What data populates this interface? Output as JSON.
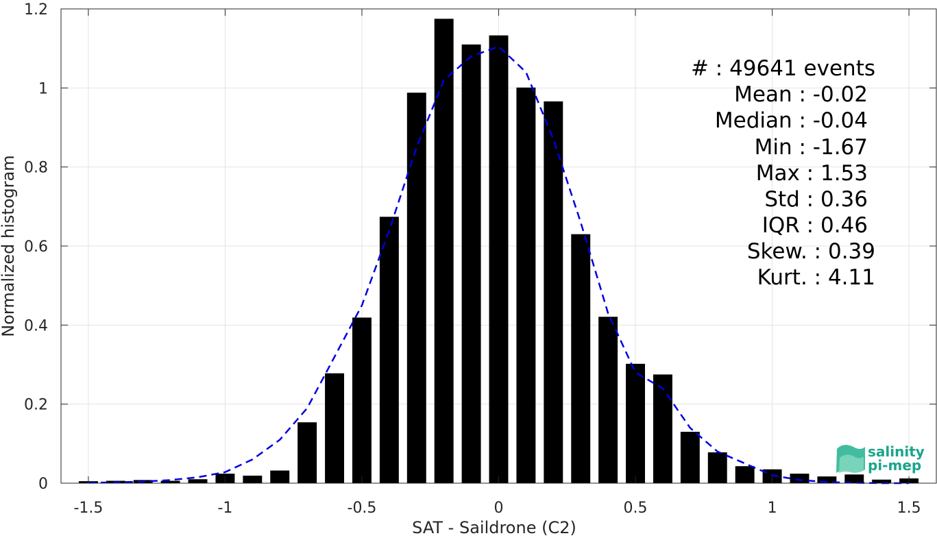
{
  "chart_data": {
    "type": "bar",
    "xlabel": "SAT - Saildrone (C2)",
    "ylabel": "Normalized histogram",
    "xlim": [
      -1.6,
      1.6
    ],
    "ylim": [
      0,
      1.2
    ],
    "grid": true,
    "x_ticks": [
      -1.5,
      -1,
      -0.5,
      0,
      0.5,
      1,
      1.5
    ],
    "x_tick_labels": [
      "-1.5",
      "-1",
      "-0.5",
      "0",
      "0.5",
      "1",
      "1.5"
    ],
    "y_ticks": [
      0,
      0.2,
      0.4,
      0.6,
      0.8,
      1,
      1.2
    ],
    "y_tick_labels": [
      "0",
      "0.2",
      "0.4",
      "0.6",
      "0.8",
      "1",
      "1.2"
    ],
    "bar_width": 0.07,
    "bars": {
      "x": [
        -1.5,
        -1.4,
        -1.3,
        -1.2,
        -1.1,
        -1.0,
        -0.9,
        -0.8,
        -0.7,
        -0.6,
        -0.5,
        -0.4,
        -0.3,
        -0.2,
        -0.1,
        0.0,
        0.1,
        0.2,
        0.3,
        0.4,
        0.5,
        0.6,
        0.7,
        0.8,
        0.9,
        1.0,
        1.1,
        1.2,
        1.3,
        1.4,
        1.5
      ],
      "values": [
        0.005,
        0.006,
        0.008,
        0.006,
        0.01,
        0.024,
        0.019,
        0.032,
        0.154,
        0.278,
        0.419,
        0.674,
        0.988,
        1.175,
        1.11,
        1.133,
        1.001,
        0.966,
        0.63,
        0.421,
        0.302,
        0.275,
        0.13,
        0.078,
        0.043,
        0.035,
        0.024,
        0.017,
        0.022,
        0.009,
        0.012
      ],
      "color": "#000000"
    },
    "fit_curve": {
      "style": "dashed",
      "color": "#0000e0",
      "x": [
        -1.5,
        -1.4,
        -1.3,
        -1.2,
        -1.1,
        -1.0,
        -0.9,
        -0.8,
        -0.7,
        -0.6,
        -0.5,
        -0.4,
        -0.3,
        -0.2,
        -0.1,
        0.0,
        0.1,
        0.2,
        0.3,
        0.4,
        0.5,
        0.6,
        0.7,
        0.8,
        0.9,
        1.0,
        1.1,
        1.2,
        1.3,
        1.4,
        1.5
      ],
      "values": [
        0.001,
        0.002,
        0.004,
        0.008,
        0.015,
        0.028,
        0.06,
        0.11,
        0.19,
        0.32,
        0.45,
        0.64,
        0.85,
        1.02,
        1.08,
        1.105,
        1.04,
        0.87,
        0.66,
        0.43,
        0.28,
        0.24,
        0.14,
        0.08,
        0.05,
        0.02,
        0.008,
        0.003,
        0.001,
        0.0,
        0.0
      ]
    },
    "annotation": {
      "lines": [
        "#  : 49641 events",
        "Mean : -0.02",
        "Median : -0.04",
        "Min : -1.67",
        "Max : 1.53",
        "Std : 0.36",
        "IQR : 0.46",
        "Skew. : 0.39",
        "Kurt. : 4.11"
      ]
    },
    "logo": {
      "line1": "salinity",
      "line2": "pi-mep",
      "color": "#1aa58a"
    }
  }
}
